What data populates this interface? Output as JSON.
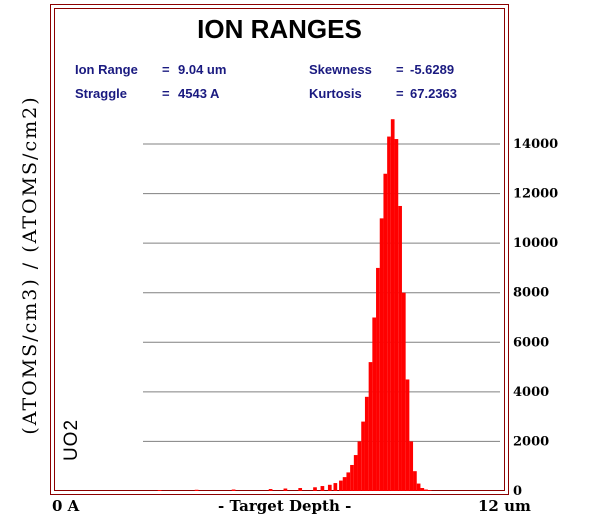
{
  "chart_data": {
    "type": "bar",
    "title": "ION RANGES",
    "stats": [
      {
        "label": "Ion Range",
        "value": "9.04 um"
      },
      {
        "label": "Straggle",
        "value": "4543 A"
      },
      {
        "label": "Skewness",
        "value": "-5.6289"
      },
      {
        "label": "Kurtosis",
        "value": "67.2363"
      }
    ],
    "ylabel": "(ATOMS/cm3)  /  (ATOMS/cm2)",
    "xlabel": "- Target Depth -",
    "xmin_label": "0 A",
    "xmax_label": "12 um",
    "material_label": "UO2",
    "x_unit": "um",
    "xlim": [
      0,
      12
    ],
    "ylim": [
      0,
      14000
    ],
    "yticks": [
      0,
      2000,
      4000,
      6000,
      8000,
      10000,
      12000,
      14000
    ],
    "grid": true,
    "bar_color": "#ff0000",
    "x": [
      2.8,
      3.8,
      4.8,
      5.8,
      6.2,
      6.6,
      7.0,
      7.2,
      7.4,
      7.55,
      7.7,
      7.8,
      7.9,
      8.0,
      8.1,
      8.2,
      8.3,
      8.4,
      8.5,
      8.6,
      8.7,
      8.8,
      8.9,
      9.0,
      9.1,
      9.2,
      9.3,
      9.4,
      9.5,
      9.6,
      9.7,
      9.8,
      9.9,
      10.0,
      10.1
    ],
    "values": [
      40,
      50,
      60,
      80,
      100,
      120,
      150,
      200,
      250,
      320,
      420,
      560,
      750,
      1050,
      1450,
      2000,
      2800,
      3800,
      5200,
      7000,
      9000,
      11000,
      12800,
      14300,
      15000,
      14200,
      11500,
      8000,
      4500,
      2000,
      800,
      300,
      120,
      60,
      30
    ]
  }
}
